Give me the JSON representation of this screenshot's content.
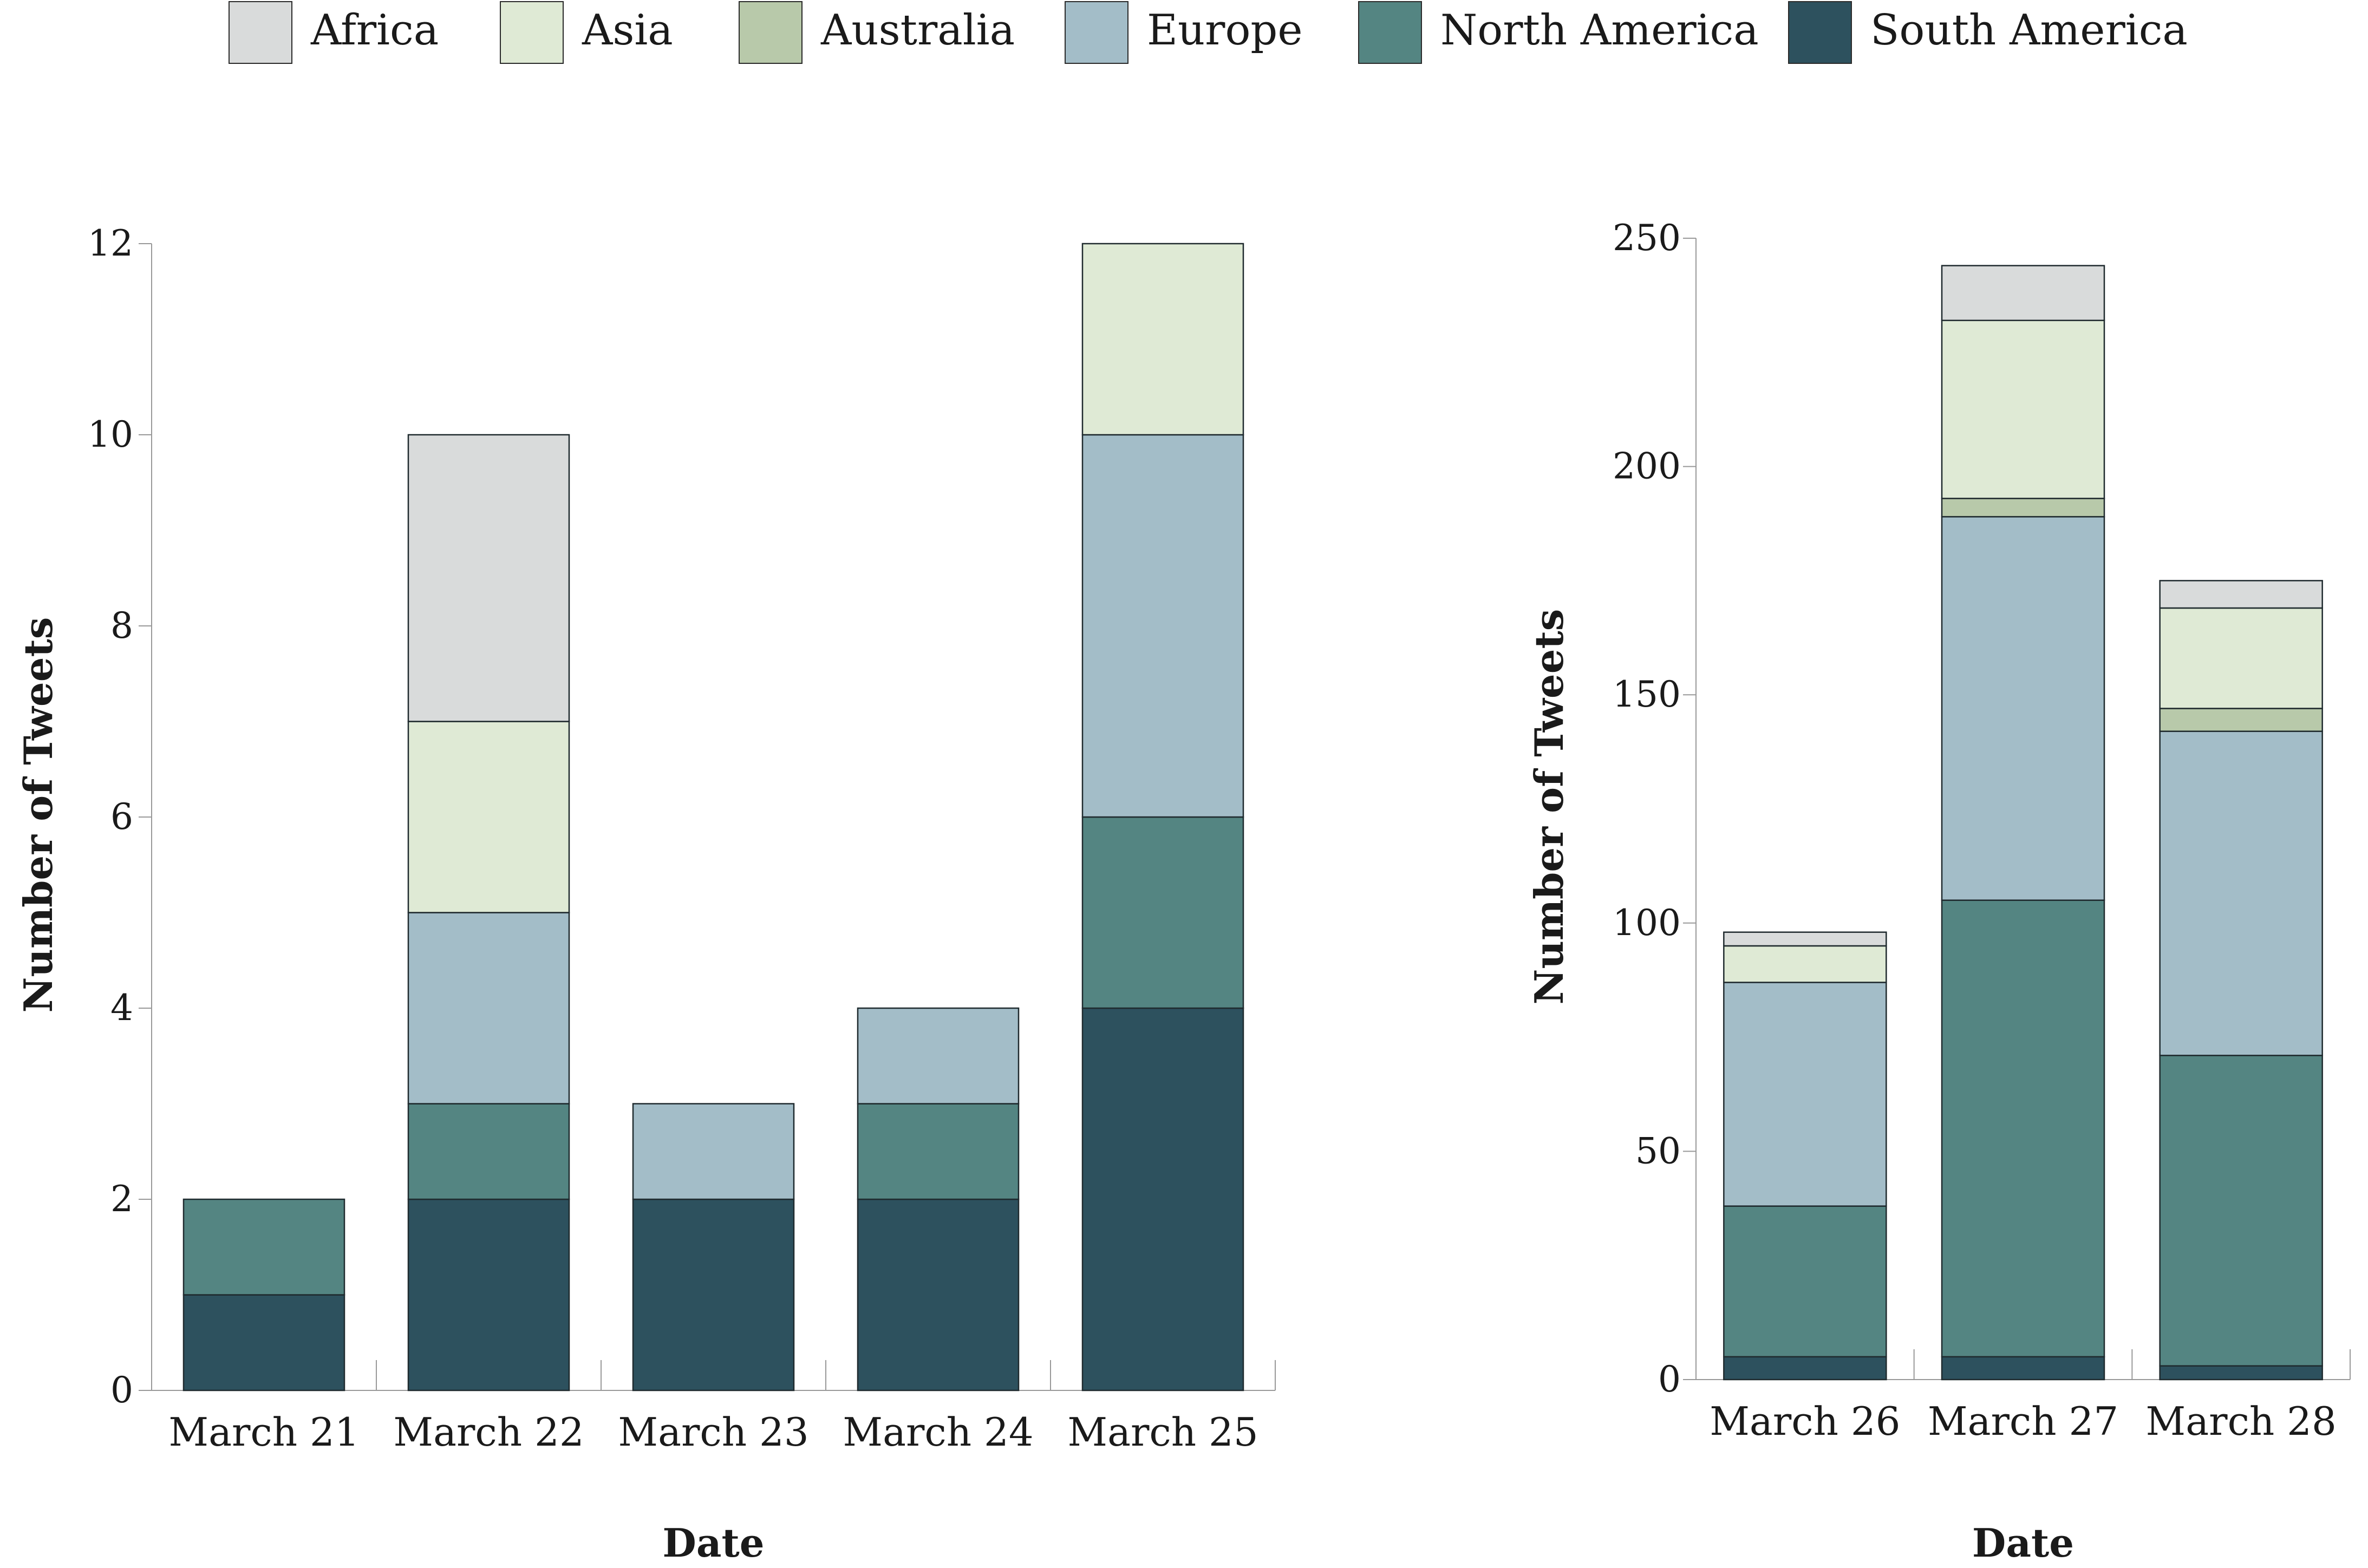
{
  "legend": {
    "items": [
      {
        "label": "Africa",
        "color": "#d9dbdb"
      },
      {
        "label": "Asia",
        "color": "#dfead5"
      },
      {
        "label": "Australia",
        "color": "#b8c9aa"
      },
      {
        "label": "Europe",
        "color": "#a3bdc8"
      },
      {
        "label": "North America",
        "color": "#548582"
      },
      {
        "label": "South America",
        "color": "#2d515e"
      }
    ]
  },
  "chart_data": [
    {
      "type": "bar",
      "stacked": true,
      "title": "",
      "xlabel": "Date",
      "ylabel": "Number of Tweets",
      "ylim": [
        0,
        12
      ],
      "yticks": [
        0,
        2,
        4,
        6,
        8,
        10,
        12
      ],
      "categories": [
        "March 21",
        "March 22",
        "March 23",
        "March 24",
        "March 25"
      ],
      "series": [
        {
          "name": "South America",
          "values": [
            1,
            2,
            2,
            2,
            4
          ]
        },
        {
          "name": "North America",
          "values": [
            1,
            1,
            0,
            1,
            2
          ]
        },
        {
          "name": "Europe",
          "values": [
            0,
            2,
            1,
            1,
            4
          ]
        },
        {
          "name": "Australia",
          "values": [
            0,
            0,
            0,
            0,
            0
          ]
        },
        {
          "name": "Asia",
          "values": [
            0,
            2,
            0,
            0,
            2
          ]
        },
        {
          "name": "Africa",
          "values": [
            0,
            3,
            0,
            0,
            0
          ]
        }
      ]
    },
    {
      "type": "bar",
      "stacked": true,
      "title": "",
      "xlabel": "Date",
      "ylabel": "Number of Tweets",
      "ylim": [
        0,
        250
      ],
      "yticks": [
        0,
        50,
        100,
        150,
        200,
        250
      ],
      "categories": [
        "March 26",
        "March 27",
        "March 28"
      ],
      "series": [
        {
          "name": "South America",
          "values": [
            5,
            5,
            3
          ]
        },
        {
          "name": "North America",
          "values": [
            33,
            100,
            68
          ]
        },
        {
          "name": "Europe",
          "values": [
            49,
            84,
            71
          ]
        },
        {
          "name": "Australia",
          "values": [
            0,
            4,
            5
          ]
        },
        {
          "name": "Asia",
          "values": [
            8,
            39,
            22
          ]
        },
        {
          "name": "Africa",
          "values": [
            3,
            12,
            6
          ]
        }
      ]
    }
  ]
}
